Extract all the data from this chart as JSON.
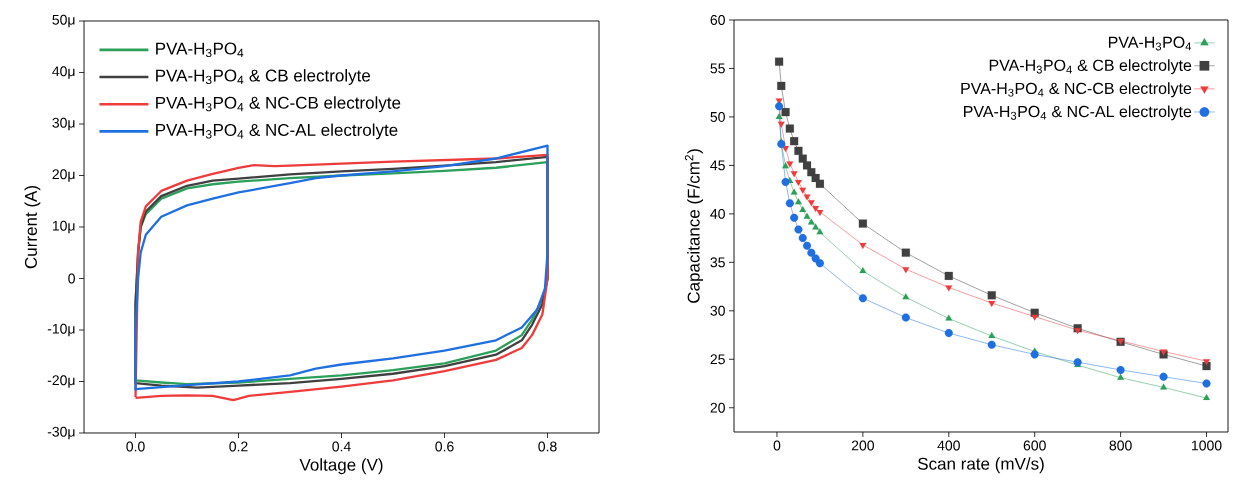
{
  "chart_data": [
    {
      "type": "line",
      "xlabel": "Voltage (V)",
      "ylabel": "Current (A)",
      "legend": "top left",
      "xlim": [
        -0.1,
        0.9
      ],
      "ylim": [
        -30,
        50
      ],
      "xticks": [
        {
          "value": 0,
          "label": "0.0"
        },
        {
          "value": 0.2,
          "label": "0.2"
        },
        {
          "value": 0.4,
          "label": "0.4"
        },
        {
          "value": 0.6,
          "label": "0.6"
        },
        {
          "value": 0.8,
          "label": "0.8"
        }
      ],
      "yticks": [
        {
          "value": -30,
          "label": "-30μ"
        },
        {
          "value": -20,
          "label": "-20μ"
        },
        {
          "value": -10,
          "label": "-10μ"
        },
        0,
        {
          "value": 10,
          "label": "10μ"
        },
        {
          "value": 20,
          "label": "20μ"
        },
        {
          "value": 30,
          "label": "30μ"
        },
        {
          "value": 40,
          "label": "40μ"
        },
        {
          "value": 50,
          "label": "50μ"
        }
      ],
      "series": [
        {
          "name": "PVA-H$_{3}$PO$_{4}$",
          "color": "#2ca05a",
          "x": [
            0,
            0,
            0.005,
            0.01,
            0.02,
            0.05,
            0.1,
            0.15,
            0.2,
            0.3,
            0.4,
            0.5,
            0.6,
            0.7,
            0.8,
            0.8,
            0.79,
            0.77,
            0.75,
            0.7,
            0.6,
            0.5,
            0.4,
            0.3,
            0.2,
            0.1,
            0.05,
            0
          ],
          "values": [
            -20,
            -5,
            5,
            10,
            12.5,
            15.5,
            17.5,
            18.3,
            18.8,
            19.5,
            20,
            20.4,
            20.9,
            21.5,
            22.6,
            0,
            -4,
            -8,
            -11,
            -14,
            -16.5,
            -17.8,
            -18.8,
            -19.5,
            -20.2,
            -20.5,
            -20.2,
            -19.8
          ]
        },
        {
          "name": "PVA-H$_{3}$PO$_{4}$ & CB electrolyte",
          "color": "#404040",
          "x": [
            0,
            0,
            0.005,
            0.01,
            0.02,
            0.05,
            0.1,
            0.15,
            0.2,
            0.3,
            0.4,
            0.5,
            0.6,
            0.7,
            0.8,
            0.8,
            0.79,
            0.77,
            0.75,
            0.7,
            0.6,
            0.5,
            0.4,
            0.3,
            0.2,
            0.12,
            0.05,
            0
          ],
          "values": [
            -20.5,
            -5,
            5,
            10,
            13,
            16,
            18,
            19,
            19.4,
            20.2,
            20.8,
            21.3,
            21.9,
            22.6,
            23.6,
            0,
            -5,
            -9,
            -12,
            -14.8,
            -17,
            -18.5,
            -19.5,
            -20.3,
            -20.8,
            -21.2,
            -20.8,
            -20.3
          ]
        },
        {
          "name": "PVA-H$_{3}$PO$_{4}$ & NC-CB electrolyte",
          "color": "#ee3b3b",
          "x": [
            0,
            0.005,
            0.01,
            0.02,
            0.05,
            0.1,
            0.15,
            0.2,
            0.23,
            0.27,
            0.3,
            0.4,
            0.5,
            0.7,
            0.8,
            0.8,
            0.79,
            0.77,
            0.75,
            0.7,
            0.6,
            0.5,
            0.4,
            0.3,
            0.22,
            0.19,
            0.15,
            0.1,
            0.05,
            0
          ],
          "values": [
            -23,
            5,
            11,
            14,
            17,
            19,
            20.3,
            21.5,
            22,
            21.8,
            21.9,
            22.3,
            22.7,
            23.3,
            24,
            0,
            -7,
            -11,
            -13.5,
            -15.8,
            -18,
            -19.8,
            -21,
            -22,
            -22.8,
            -23.6,
            -22.8,
            -22.7,
            -22.8,
            -23.2
          ]
        },
        {
          "name": "PVA-H$_{3}$PO$_{4}$ & NC-AL electrolyte",
          "color": "#1f6fe0",
          "x": [
            0,
            0,
            0.005,
            0.01,
            0.02,
            0.05,
            0.1,
            0.15,
            0.2,
            0.3,
            0.35,
            0.4,
            0.5,
            0.6,
            0.7,
            0.8,
            0.8,
            0.795,
            0.78,
            0.75,
            0.7,
            0.6,
            0.5,
            0.4,
            0.35,
            0.3,
            0.2,
            0.1,
            0
          ],
          "values": [
            -21.8,
            -10,
            0,
            5,
            8.5,
            12,
            14.2,
            15.5,
            16.7,
            18.5,
            19.5,
            20,
            20.8,
            21.8,
            23.3,
            25.8,
            5,
            -2,
            -6,
            -9.5,
            -12,
            -14,
            -15.5,
            -16.7,
            -17.5,
            -18.8,
            -20,
            -20.7,
            -21.5
          ]
        }
      ]
    },
    {
      "type": "line",
      "xlabel": "Scan rate (mV/s)",
      "ylabel": "Capacitance (F/cm$^{2}$)",
      "legend": "top right",
      "xlim": [
        -100,
        1050
      ],
      "ylim": [
        17.5,
        60
      ],
      "xticks": [
        0,
        200,
        400,
        600,
        800,
        1000
      ],
      "yticks": [
        20,
        25,
        30,
        35,
        40,
        45,
        50,
        55,
        60
      ],
      "x": [
        5,
        10,
        20,
        30,
        40,
        50,
        60,
        70,
        80,
        90,
        100,
        200,
        300,
        400,
        500,
        600,
        700,
        800,
        900,
        1000
      ],
      "series": [
        {
          "name": "PVA-H$_{3}$PO$_{4}$",
          "color": "#2ca05a",
          "marker": "triangle",
          "values": [
            50,
            47.4,
            44.9,
            43.4,
            42.2,
            41.2,
            40.4,
            39.7,
            39.1,
            38.6,
            38.1,
            34.1,
            31.4,
            29.2,
            27.4,
            25.8,
            24.4,
            23.1,
            22.1,
            21
          ]
        },
        {
          "name": "PVA-H$_{3}$PO$_{4}$ & CB electrolyte",
          "color": "#404040",
          "marker": "square",
          "values": [
            55.7,
            53.2,
            50.5,
            48.8,
            47.5,
            46.5,
            45.7,
            45,
            44.3,
            43.7,
            43.1,
            39,
            36,
            33.6,
            31.6,
            29.8,
            28.2,
            26.8,
            25.5,
            24.3
          ]
        },
        {
          "name": "PVA-H$_{3}$PO$_{4}$ & NC-CB electrolyte",
          "color": "#ee3b3b",
          "marker": "triangle down",
          "values": [
            51.7,
            49.3,
            46.8,
            45.2,
            44.2,
            43.3,
            42.5,
            41.8,
            41.2,
            40.6,
            40.2,
            36.8,
            34.3,
            32.4,
            30.8,
            29.4,
            28,
            26.9,
            25.8,
            24.8
          ]
        },
        {
          "name": "PVA-H$_{3}$PO$_{4}$ & NC-AL electrolyte",
          "color": "#1f6fe0",
          "marker": "circle",
          "values": [
            51.1,
            47.2,
            43.3,
            41.1,
            39.6,
            38.4,
            37.5,
            36.7,
            36,
            35.4,
            34.9,
            31.3,
            29.3,
            27.7,
            26.5,
            25.5,
            24.7,
            23.9,
            23.2,
            22.5
          ]
        }
      ]
    }
  ]
}
